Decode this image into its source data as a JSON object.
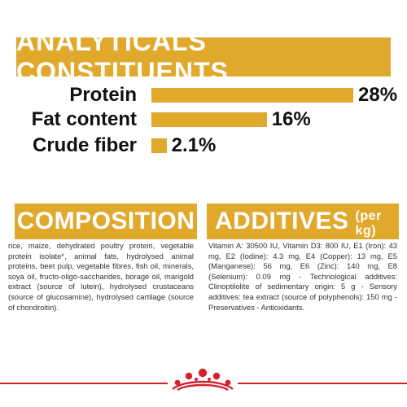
{
  "analytics": {
    "title": "ANALYTICALS CONSTITUENTS",
    "rows": [
      {
        "label": "Protein",
        "value": "28%",
        "percent": 28
      },
      {
        "label": "Fat content",
        "value": "16%",
        "percent": 16
      },
      {
        "label": "Crude fiber",
        "value": "2.1%",
        "percent": 2.1
      }
    ]
  },
  "composition": {
    "title": "COMPOSITION",
    "text": "rice, maize, dehydrated poultry protein, vegetable protein isolate*, animal fats, hydrolysed animal proteins, beet pulp, vegetable fibres, fish oil, minerals, soya oil, fructo-oligo-saccharides, borage oil, marigold extract (source of lutein), hydrolysed crustaceans (source of glucosamine), hydrolysed cartilage (source of chondroitin)."
  },
  "additives": {
    "title": "ADDITIVES",
    "subtitle": "(per kg)",
    "text": "Vitamin A: 30500 IU, Vitamin D3: 800 IU, E1 (Iron): 43 mg, E2 (Iodine): 4.3 mg, E4 (Copper): 13 mg, E5 (Manganese): 56 mg, E6 (Zinc): 140 mg, E8 (Selenium): 0.09 mg - Technological additives: Clinoptilolite of sedimentary origin: 5 g - Sensory additives: tea extract (source of polyphenols): 150 mg - Preservatives - Antioxidants."
  },
  "colors": {
    "accent": "#e1a92c",
    "footer_red": "#d4212d"
  },
  "footer": {
    "logo_icon": "royal-canin-crown-logo"
  }
}
